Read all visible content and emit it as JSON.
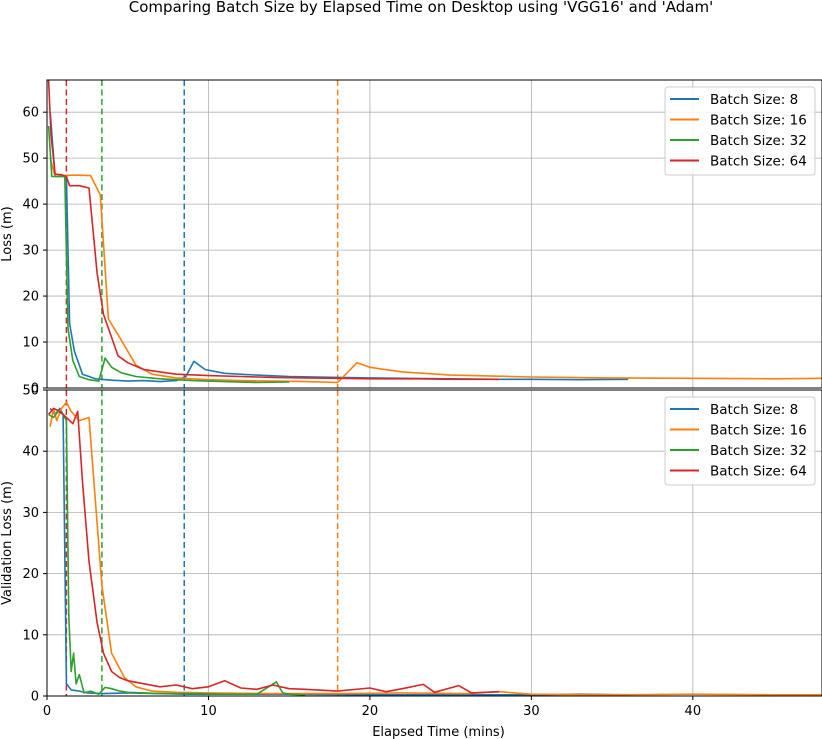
{
  "title": "Comparing Batch Size by Elapsed Time on Desktop using 'VGG16' and 'Adam'",
  "colors": {
    "8": "#1f77b4",
    "16": "#ff7f0e",
    "32": "#2ca02c",
    "64": "#d62728"
  },
  "chart_data": [
    {
      "type": "line",
      "ylabel": "Loss (m)",
      "xlabel": "",
      "xlim": [
        0,
        48
      ],
      "ylim": [
        0,
        67
      ],
      "xticks": [
        0,
        10,
        20,
        30,
        40
      ],
      "yticks": [
        0,
        10,
        20,
        30,
        40,
        50,
        60
      ],
      "grid": true,
      "legend_position": "top-right",
      "series": [
        {
          "name": "Batch Size: 8",
          "color": "#1f77b4",
          "stop_time": 8.5,
          "x": [
            0.2,
            0.5,
            0.8,
            1.0,
            1.2,
            1.4,
            1.7,
            2.2,
            3.0,
            4.0,
            5.0,
            6.0,
            7.0,
            8.0,
            8.6,
            9.1,
            9.8,
            11.0,
            13.0,
            15.0,
            18.0,
            20.0,
            22.0,
            25.0,
            28.0,
            30.0,
            33.0,
            36.0
          ],
          "y": [
            60,
            46,
            46,
            46,
            46,
            14,
            8,
            3,
            2,
            1.7,
            1.5,
            1.6,
            1.4,
            1.6,
            2.5,
            5.8,
            4,
            3.2,
            2.8,
            2.5,
            2.3,
            2.2,
            2.1,
            2.0,
            1.9,
            1.9,
            1.8,
            1.9
          ]
        },
        {
          "name": "Batch Size: 16",
          "color": "#ff7f0e",
          "stop_time": 18.0,
          "x": [
            0.2,
            0.5,
            1.0,
            1.5,
            2.0,
            2.7,
            3.3,
            3.8,
            4.5,
            5.0,
            5.5,
            6.5,
            8.0,
            10.0,
            12.0,
            14.0,
            16.0,
            18.0,
            19.2,
            20.0,
            22.0,
            25.0,
            30.0,
            35.0,
            40.0,
            45.0,
            48.0
          ],
          "y": [
            50,
            46,
            46.2,
            46.3,
            46.3,
            46.2,
            42,
            15,
            11,
            8,
            5,
            3,
            2.2,
            1.8,
            1.6,
            1.5,
            1.4,
            1.2,
            5.5,
            4.5,
            3.5,
            2.8,
            2.4,
            2.2,
            2.1,
            2.0,
            2.1
          ]
        },
        {
          "name": "Batch Size: 32",
          "color": "#2ca02c",
          "stop_time": 3.4,
          "x": [
            0.1,
            0.3,
            0.6,
            0.9,
            1.1,
            1.3,
            1.6,
            2.0,
            2.6,
            3.2,
            3.6,
            4.0,
            4.6,
            5.5,
            7.0,
            9.0,
            11.0,
            13.0,
            15.0
          ],
          "y": [
            57,
            46,
            46,
            46,
            46,
            13,
            6,
            2.5,
            1.8,
            1.5,
            6.5,
            4.5,
            3.3,
            2.5,
            2,
            1.6,
            1.4,
            1.2,
            1.3
          ]
        },
        {
          "name": "Batch Size: 64",
          "color": "#d62728",
          "stop_time": 1.2,
          "x": [
            0.1,
            0.25,
            0.5,
            0.9,
            1.2,
            1.4,
            2.0,
            2.6,
            3.1,
            3.5,
            4.0,
            4.4,
            5.0,
            6.0,
            7.0,
            8.0,
            10.0,
            12.0,
            14.0,
            16.0,
            18.0,
            20.0,
            23.0,
            25.0,
            28.0
          ],
          "y": [
            67,
            55,
            46.5,
            46.4,
            46,
            44,
            44,
            43.5,
            25,
            16,
            11,
            7,
            5.5,
            4,
            3.5,
            3,
            2.7,
            2.5,
            2.3,
            2.2,
            2.1,
            2.0,
            2.0,
            1.9,
            1.9
          ]
        }
      ]
    },
    {
      "type": "line",
      "ylabel": "Validation Loss (m)",
      "xlabel": "Elapsed Time (mins)",
      "xlim": [
        0,
        48
      ],
      "ylim": [
        0,
        50
      ],
      "xticks": [
        0,
        10,
        20,
        30,
        40
      ],
      "yticks": [
        0,
        10,
        20,
        30,
        40,
        50
      ],
      "grid": true,
      "legend_position": "top-right",
      "series": [
        {
          "name": "Batch Size: 8",
          "color": "#1f77b4",
          "stop_time": 8.5,
          "x": [
            0.2,
            0.5,
            0.8,
            1.0,
            1.2,
            1.5,
            2.0,
            2.5,
            3.5,
            5.0,
            7.0,
            8.5,
            10.0,
            12.0,
            15.0,
            20.0,
            25.0,
            30.0,
            33.0,
            36.0
          ],
          "y": [
            47,
            46,
            47,
            46,
            2,
            1,
            0.8,
            0.5,
            0.4,
            0.5,
            0.4,
            0.3,
            0.3,
            0.3,
            0.3,
            0.2,
            0.2,
            0.2,
            0.3,
            0.2
          ]
        },
        {
          "name": "Batch Size: 16",
          "color": "#ff7f0e",
          "stop_time": 18.0,
          "x": [
            0.2,
            0.4,
            0.6,
            0.9,
            1.2,
            1.5,
            2.0,
            2.6,
            3.4,
            4.0,
            4.8,
            5.5,
            6.5,
            8.0,
            10.0,
            14.0,
            18.0,
            22.0,
            26.0,
            28.0,
            30.0,
            35.0,
            40.0,
            45.0,
            48.0
          ],
          "y": [
            44,
            47,
            45,
            47,
            48,
            46.5,
            45,
            45.5,
            18,
            7,
            3,
            1.5,
            0.8,
            0.6,
            0.5,
            0.4,
            0.4,
            0.5,
            0.4,
            0.7,
            0.3,
            0.2,
            0.3,
            0.2,
            0.2
          ]
        },
        {
          "name": "Batch Size: 32",
          "color": "#2ca02c",
          "stop_time": 3.4,
          "x": [
            0.1,
            0.4,
            0.7,
            1.0,
            1.2,
            1.35,
            1.5,
            1.65,
            1.8,
            2.0,
            2.3,
            2.7,
            3.2,
            3.6,
            4.0,
            4.5,
            5.0,
            6.0,
            7.0,
            9.0,
            11.0,
            13.0,
            14.2,
            14.6,
            15.0,
            16.0
          ],
          "y": [
            46,
            45.5,
            46.5,
            46,
            45,
            13,
            4,
            7,
            2,
            3.5,
            0.5,
            0.8,
            0.3,
            1.4,
            1.2,
            0.8,
            0.6,
            0.5,
            0.4,
            0.4,
            0.3,
            0.3,
            2.3,
            0.5,
            0.3,
            0.2
          ]
        },
        {
          "name": "Batch Size: 64",
          "color": "#d62728",
          "stop_time": 1.2,
          "x": [
            0.1,
            0.4,
            0.8,
            1.2,
            1.6,
            1.9,
            2.2,
            2.6,
            3.1,
            3.5,
            4.0,
            4.5,
            5.0,
            6.0,
            7.0,
            8.0,
            9.0,
            10.0,
            11.0,
            12.0,
            13.0,
            14.0,
            15.0,
            16.0,
            18.0,
            20.0,
            21.0,
            22.0,
            23.3,
            24.0,
            25.5,
            26.3,
            28.0
          ],
          "y": [
            46,
            47,
            46.5,
            45.5,
            44.5,
            46.5,
            35,
            22,
            12,
            7,
            4,
            3,
            2.5,
            2,
            1.5,
            1.8,
            1.2,
            1.5,
            2.5,
            1.3,
            1.1,
            1.8,
            1.2,
            1.1,
            0.8,
            1.3,
            0.7,
            1.2,
            1.9,
            0.6,
            1.7,
            0.5,
            0.7
          ]
        }
      ]
    }
  ]
}
